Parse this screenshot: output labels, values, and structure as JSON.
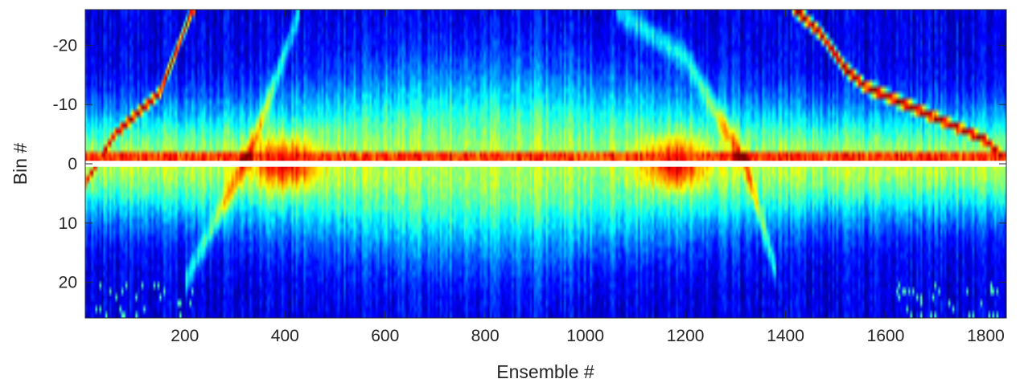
{
  "chart_data": {
    "type": "heatmap",
    "title": "",
    "xlabel": "Ensemble #",
    "ylabel": "Bin #",
    "xlim": [
      1,
      1841
    ],
    "ylim": [
      -26,
      26
    ],
    "y_reversed": true,
    "x_ticks": [
      200,
      400,
      600,
      800,
      1000,
      1200,
      1400,
      1600,
      1800
    ],
    "y_ticks": [
      -20,
      -10,
      0,
      10,
      20
    ],
    "x_tick_labels": [
      "200",
      "400",
      "600",
      "800",
      "1000",
      "1200",
      "1400",
      "1600",
      "1800"
    ],
    "y_tick_labels": [
      "-20",
      "-10",
      "0",
      "10",
      "20"
    ],
    "colormap": "jet",
    "grid": false,
    "n_ensembles": 1841,
    "n_bins": 52,
    "blank_bin": 0,
    "features": {
      "surface_echo_left": [
        [
          10,
          2
        ],
        [
          60,
          -5
        ],
        [
          150,
          -12
        ],
        [
          215,
          -26
        ]
      ],
      "surface_echo_right": [
        [
          1420,
          -26
        ],
        [
          1470,
          -22
        ],
        [
          1520,
          -16
        ],
        [
          1560,
          -13
        ],
        [
          1640,
          -10
        ],
        [
          1720,
          -7
        ],
        [
          1800,
          -4
        ],
        [
          1835,
          -1
        ]
      ],
      "strong_band_bin": -1,
      "hot_spots_x": [
        400,
        1180
      ],
      "diagonal_streaks": [
        [
          [
            200,
            20
          ],
          [
            330,
            -2
          ],
          [
            430,
            -26
          ]
        ],
        [
          [
            1060,
            -26
          ],
          [
            1200,
            -18
          ],
          [
            1320,
            0
          ],
          [
            1380,
            18
          ]
        ]
      ]
    }
  }
}
